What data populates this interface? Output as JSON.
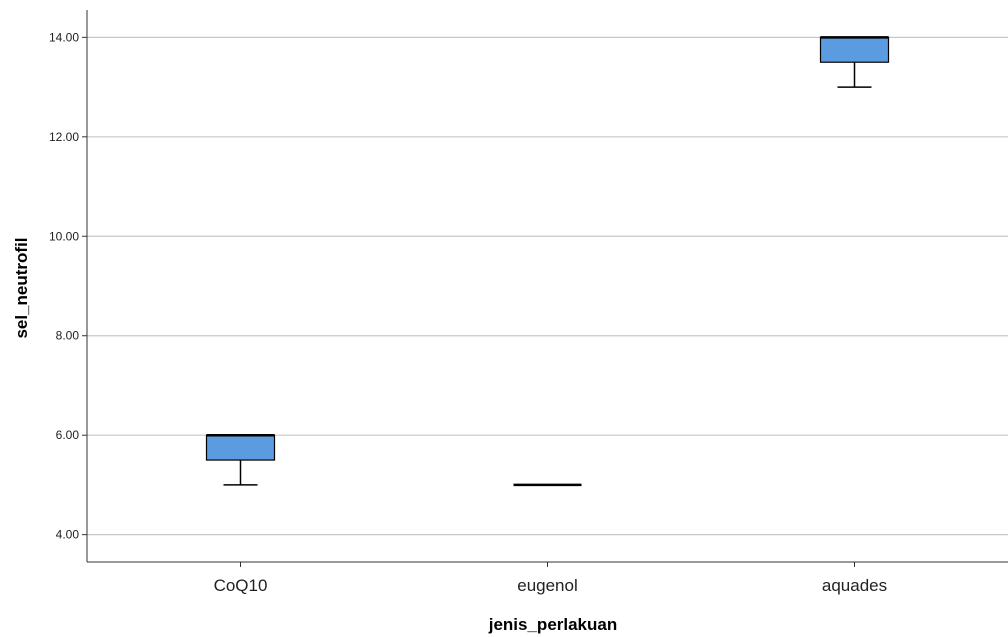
{
  "chart_data": {
    "type": "box",
    "xlabel": "jenis_perlakuan",
    "ylabel": "sel_neutrofil",
    "categories": [
      "CoQ10",
      "eugenol",
      "aquades"
    ],
    "boxes": [
      {
        "category": "CoQ10",
        "min": 5.0,
        "q1": 5.5,
        "median": 6.0,
        "q3": 6.0,
        "max": 6.0
      },
      {
        "category": "eugenol",
        "min": 5.0,
        "q1": 5.0,
        "median": 5.0,
        "q3": 5.0,
        "max": 5.0
      },
      {
        "category": "aquades",
        "min": 13.0,
        "q1": 13.5,
        "median": 14.0,
        "q3": 14.0,
        "max": 14.0
      }
    ],
    "y_ticks": [
      "4.00",
      "6.00",
      "8.00",
      "10.00",
      "12.00",
      "14.00"
    ],
    "ylim": [
      3.45,
      14.55
    ],
    "grid": true,
    "box_color": "#5B9BE0"
  }
}
